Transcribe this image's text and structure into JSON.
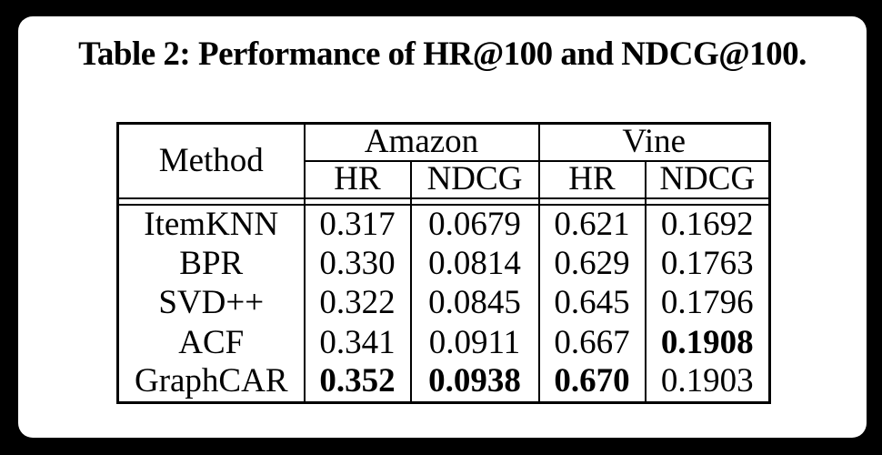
{
  "page": {
    "background_color": "#000000",
    "card_color": "#ffffff",
    "text_color": "#000000"
  },
  "caption": "Table 2: Performance of HR@100 and NDCG@100.",
  "table": {
    "method_header": "Method",
    "groups": [
      {
        "label": "Amazon",
        "columns": [
          "HR",
          "NDCG"
        ]
      },
      {
        "label": "Vine",
        "columns": [
          "HR",
          "NDCG"
        ]
      }
    ],
    "rows": [
      {
        "method": "ItemKNN",
        "cells": [
          "0.317",
          "0.0679",
          "0.621",
          "0.1692"
        ],
        "bold": []
      },
      {
        "method": "BPR",
        "cells": [
          "0.330",
          "0.0814",
          "0.629",
          "0.1763"
        ],
        "bold": []
      },
      {
        "method": "SVD++",
        "cells": [
          "0.322",
          "0.0845",
          "0.645",
          "0.1796"
        ],
        "bold": []
      },
      {
        "method": "ACF",
        "cells": [
          "0.341",
          "0.0911",
          "0.667",
          "0.1908"
        ],
        "bold": [
          3
        ]
      },
      {
        "method": "GraphCAR",
        "cells": [
          "0.352",
          "0.0938",
          "0.670",
          "0.1903"
        ],
        "bold": [
          0,
          1,
          2
        ]
      }
    ]
  }
}
